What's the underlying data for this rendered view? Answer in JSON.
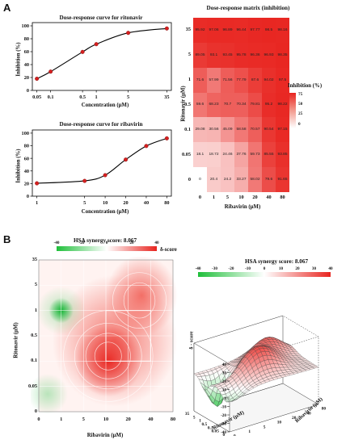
{
  "panels": {
    "a": "A",
    "b": "B"
  },
  "chart_data": [
    {
      "type": "line",
      "title": "Dose-response curve for ritonavir",
      "xlabel": "Concentration (μM)",
      "ylabel": "Inhibition (%)",
      "x_ticks": [
        "0.05",
        "0.1",
        "0.5",
        "1",
        "5",
        "35"
      ],
      "y_ticks": [
        "0",
        "20",
        "40",
        "60",
        "80",
        "100"
      ],
      "x_scale": "log",
      "ylim": [
        0,
        105
      ],
      "x": [
        0.05,
        0.1,
        0.5,
        1,
        5,
        35
      ],
      "values": [
        18.1,
        29.1,
        59.6,
        71.6,
        89.1,
        95.9
      ],
      "marker_color": "#d62020"
    },
    {
      "type": "line",
      "title": "Dose-response curve for ribavirin",
      "xlabel": "Concentration (μM)",
      "ylabel": "Inhibition (%)",
      "x_ticks": [
        "1",
        "5",
        "10",
        "20",
        "40",
        "80"
      ],
      "y_ticks": [
        "0",
        "20",
        "40",
        "60",
        "80",
        "100"
      ],
      "x_scale": "log",
      "ylim": [
        0,
        105
      ],
      "x": [
        1,
        5,
        10,
        20,
        40,
        80
      ],
      "values": [
        20.4,
        24.2,
        33.3,
        58.0,
        79.6,
        91.7
      ],
      "marker_color": "#d62020"
    },
    {
      "type": "heatmap",
      "title": "Dose-response matrix (inhibition)",
      "xlabel": "Ribavirin (μM)",
      "ylabel": "Ritonavir (μM)",
      "x_ticks": [
        "0",
        "1",
        "5",
        "10",
        "20",
        "40",
        "80"
      ],
      "y_ticks": [
        "35",
        "5",
        "1",
        "0.5",
        "0.1",
        "0.05",
        "0"
      ],
      "values": [
        [
          "95.92",
          "97.06",
          "96.89",
          "96.44",
          "97.77",
          "98.5",
          "98.16"
        ],
        [
          "89.05",
          "93.1",
          "93.45",
          "95.78",
          "96.36",
          "96.93",
          "98.35"
        ],
        [
          "71.6",
          "57.99",
          "71.56",
          "77.79",
          "87.6",
          "94.02",
          "97.5"
        ],
        [
          "59.6",
          "68.23",
          "70.7",
          "70.34",
          "79.81",
          "95.2",
          "98.22"
        ],
        [
          "29.08",
          "30.56",
          "45.09",
          "58.58",
          "70.57",
          "90.54",
          "97.15"
        ],
        [
          "18.1",
          "18.72",
          "24.46",
          "37.76",
          "59.73",
          "85.55",
          "93.85"
        ],
        [
          "0",
          "20.4",
          "24.2",
          "33.27",
          "58.02",
          "79.6",
          "91.65"
        ]
      ],
      "legend_title": "Inhibition (%)",
      "legend_ticks": [
        "75",
        "50",
        "25",
        "0"
      ],
      "colors": {
        "low": "#ffffff",
        "high": "#e8241f"
      }
    },
    {
      "type": "heatmap",
      "title": "HSA synergy score: 8.067",
      "xlabel": "Ribavirin (μM)",
      "ylabel": "Ritonavir (μM)",
      "x_ticks": [
        "0",
        "1",
        "5",
        "10",
        "20",
        "40",
        "80"
      ],
      "y_ticks": [
        "35",
        "5",
        "1",
        "0.5",
        "0.1",
        "0.05",
        "0"
      ],
      "legend_title": "δ-score",
      "legend_ticks": [
        "-40",
        "-20",
        "0",
        "20",
        "40"
      ],
      "colors": {
        "negative": "#1fbf3a",
        "positive": "#e8241f"
      }
    },
    {
      "type": "area",
      "title": "HSA synergy score: 8.067",
      "xlabel": "Ribavirin (μM)",
      "ylabel": "Ritonavir (μM)",
      "zlabel": "δ - score",
      "z_ticks": [
        "40",
        "30",
        "20",
        "10",
        "0",
        "-10",
        "-20",
        "-30",
        "-40"
      ],
      "x_ticks": [
        "0",
        "1",
        "5",
        "10",
        "20",
        "40",
        "80"
      ],
      "y_ticks": [
        "0",
        "0.05",
        "0.1",
        "0.5",
        "1",
        "5",
        "35"
      ],
      "legend_ticks": [
        "-40",
        "-30",
        "-20",
        "-10",
        "0",
        "10",
        "20",
        "30",
        "40"
      ]
    }
  ]
}
